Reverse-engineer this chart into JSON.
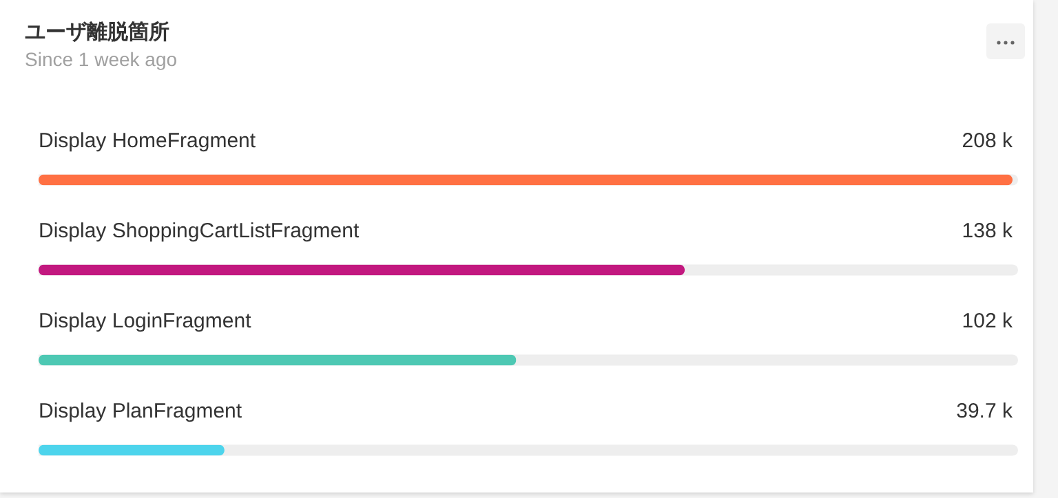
{
  "chart_data": {
    "type": "bar",
    "orientation": "horizontal",
    "title": "ユーザ離脱箇所",
    "subtitle": "Since 1 week ago",
    "categories": [
      "Display HomeFragment",
      "Display ShoppingCartListFragment",
      "Display LoginFragment",
      "Display PlanFragment"
    ],
    "values": [
      208,
      138,
      102,
      39.7
    ],
    "value_labels": [
      "208 k",
      "138 k",
      "102 k",
      "39.7 k"
    ],
    "colors": [
      "#ff7043",
      "#c2187f",
      "#4dc8b3",
      "#4dd4ec"
    ],
    "xlim": [
      0,
      208
    ]
  }
}
